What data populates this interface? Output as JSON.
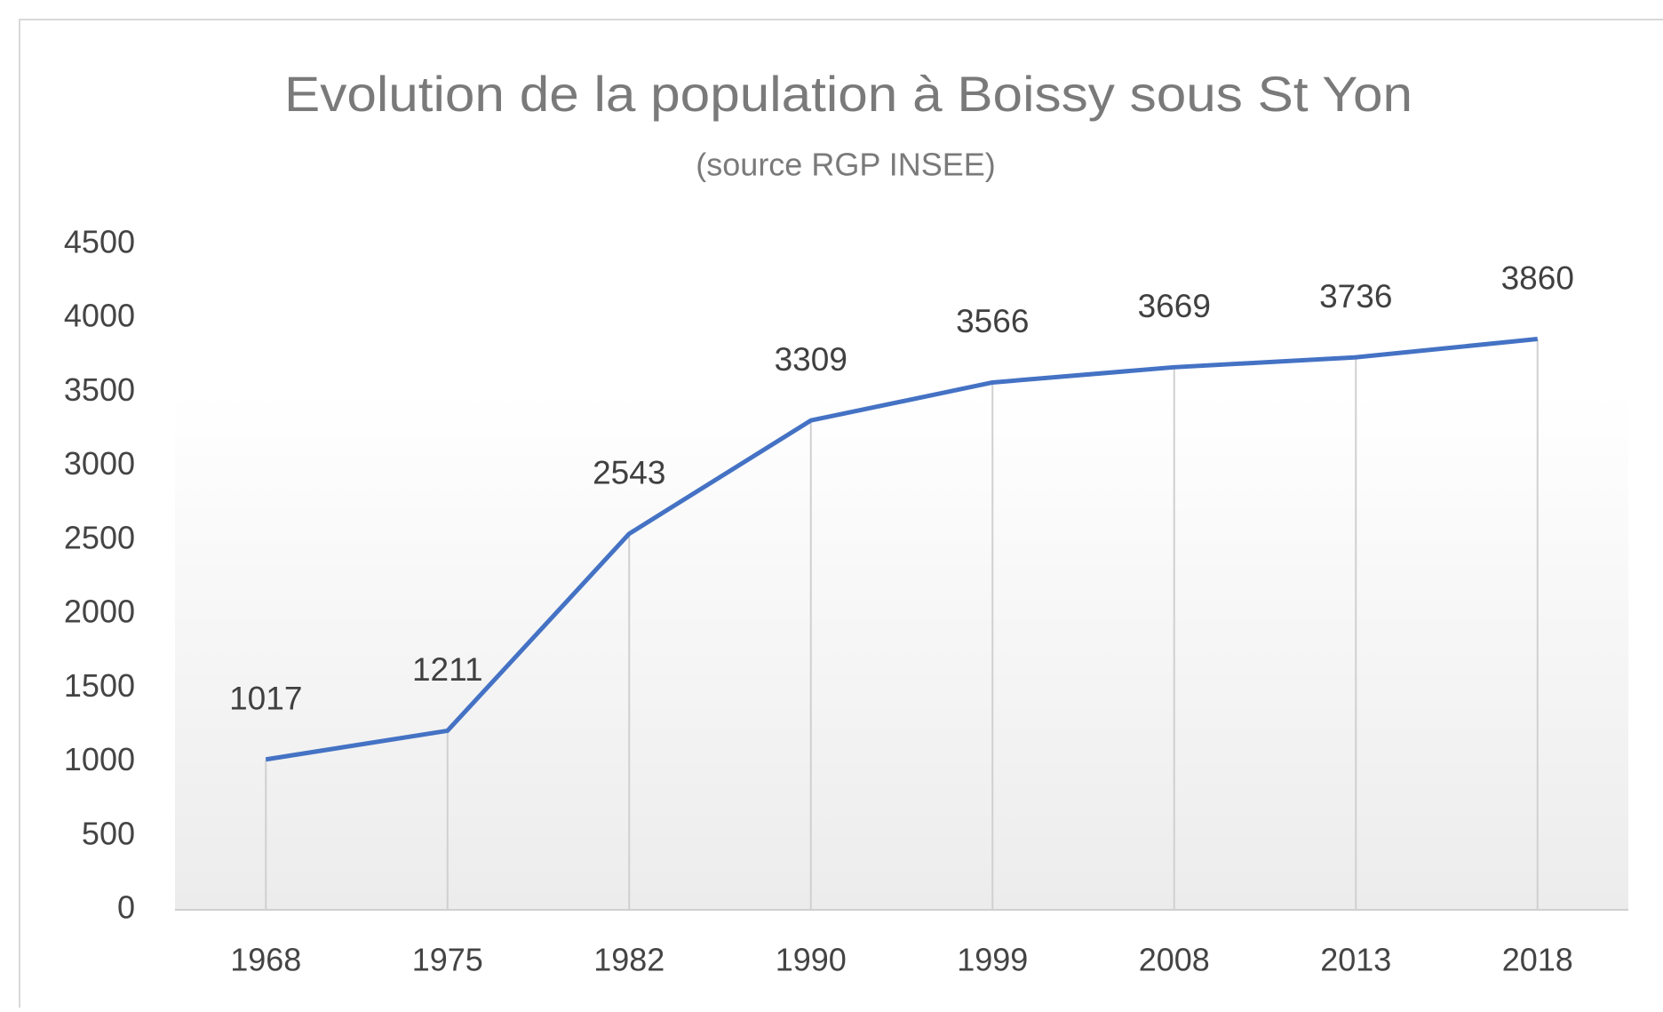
{
  "chart_data": {
    "type": "line",
    "title": "Evolution de la population à Boissy sous St Yon",
    "subtitle": "(source RGP INSEE)",
    "categories": [
      "1968",
      "1975",
      "1982",
      "1990",
      "1999",
      "2008",
      "2013",
      "2018"
    ],
    "values": [
      1017,
      1211,
      2543,
      3309,
      3566,
      3669,
      3736,
      3860
    ],
    "color": "#4472c4",
    "ylim": [
      0,
      4500
    ],
    "yticks": [
      0,
      500,
      1000,
      1500,
      2000,
      2500,
      3000,
      3500,
      4000,
      4500
    ],
    "drop_lines": true
  }
}
